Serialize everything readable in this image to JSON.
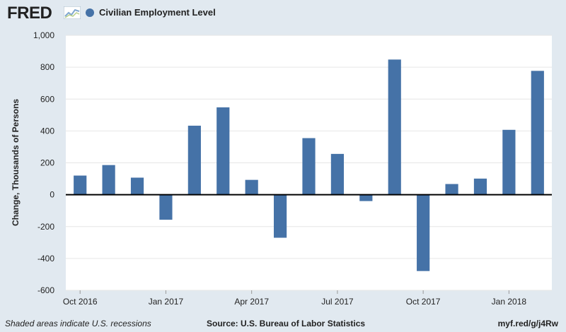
{
  "header": {
    "logo_text": "FRED",
    "legend_label": "Civilian Employment Level",
    "series_color": "#4572a7"
  },
  "footer": {
    "recession_note": "Shaded areas indicate U.S. recessions",
    "source": "Source: U.S. Bureau of Labor Statistics",
    "url": "myf.red/g/j4Rw"
  },
  "chart_data": {
    "type": "bar",
    "title": "",
    "xlabel": "",
    "ylabel": "Change, Thousands of Persons",
    "ylim": [
      -600,
      1000
    ],
    "yticks": [
      -600,
      -400,
      -200,
      0,
      200,
      400,
      600,
      800,
      1000
    ],
    "ytick_labels": [
      "-600",
      "-400",
      "-200",
      "0",
      "200",
      "400",
      "600",
      "800",
      "1,000"
    ],
    "categories": [
      "2016-10",
      "2016-11",
      "2016-12",
      "2017-01",
      "2017-02",
      "2017-03",
      "2017-04",
      "2017-05",
      "2017-06",
      "2017-07",
      "2017-08",
      "2017-09",
      "2017-10",
      "2017-11",
      "2017-12",
      "2018-01",
      "2018-02"
    ],
    "xtick_labels": [
      {
        "category": "2016-10",
        "label": "Oct 2016"
      },
      {
        "category": "2017-01",
        "label": "Jan 2017"
      },
      {
        "category": "2017-04",
        "label": "Apr 2017"
      },
      {
        "category": "2017-07",
        "label": "Jul 2017"
      },
      {
        "category": "2017-10",
        "label": "Oct 2017"
      },
      {
        "category": "2018-01",
        "label": "Jan 2018"
      }
    ],
    "series": [
      {
        "values": [
          120,
          186,
          107,
          -157,
          433,
          548,
          93,
          -270,
          355,
          256,
          -40,
          848,
          -479,
          67,
          101,
          407,
          777
        ],
        "color": "#4572a7"
      }
    ],
    "grid": true,
    "legend": "top-left"
  }
}
